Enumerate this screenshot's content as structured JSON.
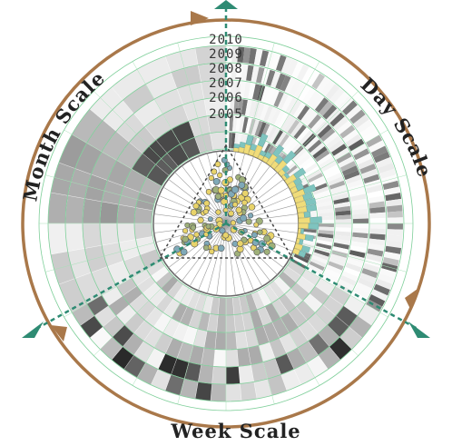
{
  "labels": {
    "month_scale": "Month Scale",
    "day_scale": "Day Scale",
    "week_scale": "Week Scale"
  },
  "years": [
    "2010",
    "2009",
    "2008",
    "2007",
    "2006",
    "2005"
  ],
  "colors": {
    "ring_brown": "#a9784a",
    "axis_teal": "#2e8b73",
    "grid_green": "#7fcf9a",
    "scatter_yellow": "#e8d36a",
    "scatter_blue": "#7fa9b8",
    "scatter_dark": "#555555",
    "bar_yellow": "#f0dc7a",
    "bar_teal": "#7fc4bf"
  }
}
